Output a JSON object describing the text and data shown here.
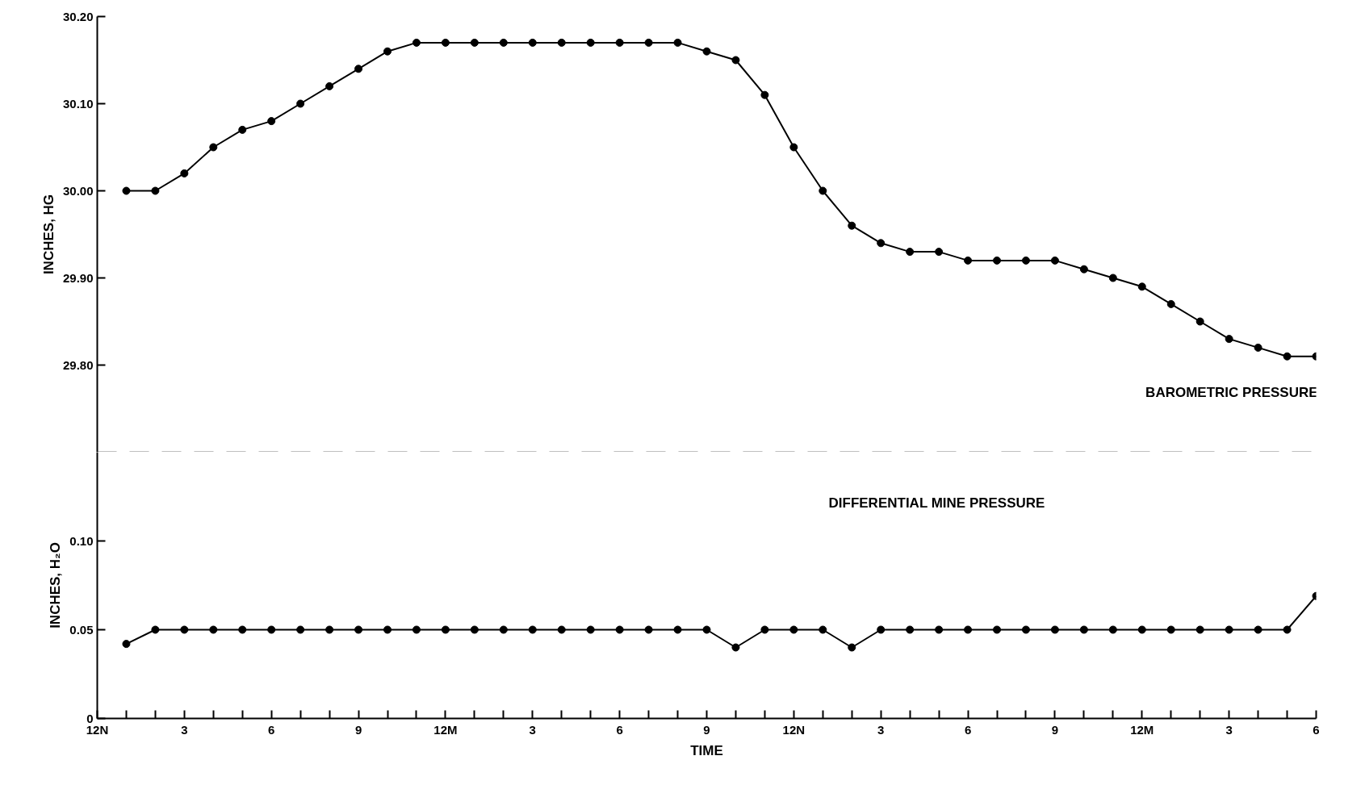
{
  "chart_data": [
    {
      "type": "line",
      "ylabel": "INCHES, HG",
      "categories": [
        null,
        null,
        null,
        null,
        null,
        null,
        null,
        null,
        null,
        null,
        null,
        null,
        null,
        null,
        null,
        null,
        null,
        null,
        null,
        null,
        null,
        null,
        null,
        null,
        null,
        null,
        null,
        null,
        null,
        null,
        null,
        null,
        null,
        null,
        null,
        null,
        null,
        null,
        null,
        null,
        null,
        null,
        null
      ],
      "series": [
        {
          "name": "BAROMETRIC PRESSURE",
          "color": "#000000",
          "values": [
            null,
            30.0,
            30.0,
            30.02,
            30.05,
            30.07,
            30.08,
            30.1,
            30.12,
            30.14,
            30.16,
            30.17,
            30.17,
            30.17,
            30.17,
            30.17,
            30.17,
            30.17,
            30.17,
            30.17,
            30.17,
            30.16,
            30.15,
            30.11,
            30.05,
            30.0,
            29.96,
            29.94,
            29.93,
            29.93,
            29.92,
            29.92,
            29.92,
            29.92,
            29.91,
            29.9,
            29.89,
            29.87,
            29.85,
            29.83,
            29.82,
            29.81,
            29.81
          ]
        }
      ],
      "ylim": [
        29.7,
        30.2
      ],
      "yticks": [
        {
          "value": 29.8,
          "label": "29.80"
        },
        {
          "value": 29.9,
          "label": "29.90"
        },
        {
          "value": 30.0,
          "label": "30.00"
        },
        {
          "value": 30.1,
          "label": "30.10"
        },
        {
          "value": 30.2,
          "label": "30.20"
        }
      ],
      "ref_lines": [
        {
          "axis": "y",
          "value": 29.7,
          "label": null,
          "color": "#000000",
          "line_style": "dashed"
        }
      ],
      "tick_labels": "y",
      "grid": false,
      "marker": "circle",
      "line_style": "solid"
    },
    {
      "type": "line",
      "xlabel": "TIME",
      "ylabel": "INCHES, H₂O",
      "categories": [
        "12N",
        null,
        null,
        "3",
        null,
        null,
        "6",
        null,
        null,
        "9",
        null,
        null,
        "12M",
        null,
        null,
        "3",
        null,
        null,
        "6",
        null,
        null,
        "9",
        null,
        null,
        "12N",
        null,
        null,
        "3",
        null,
        null,
        "6",
        null,
        null,
        "9",
        null,
        null,
        "12M",
        null,
        null,
        "3",
        null,
        null,
        "6"
      ],
      "series": [
        {
          "name": "DIFFERENTIAL MINE PRESSURE",
          "color": "#000000",
          "values": [
            null,
            0.042,
            0.05,
            0.05,
            0.05,
            0.05,
            0.05,
            0.05,
            0.05,
            0.05,
            0.05,
            0.05,
            0.05,
            0.05,
            0.05,
            0.05,
            0.05,
            0.05,
            0.05,
            0.05,
            0.05,
            0.05,
            0.04,
            0.05,
            0.05,
            0.05,
            0.04,
            0.05,
            0.05,
            0.05,
            0.05,
            0.05,
            0.05,
            0.05,
            0.05,
            0.05,
            0.05,
            0.05,
            0.05,
            0.05,
            0.05,
            0.05,
            0.069
          ]
        }
      ],
      "ylim": [
        0,
        0.15
      ],
      "yticks": [
        0,
        0.05,
        {
          "value": 0.1,
          "label": "0.10"
        }
      ],
      "grid": false,
      "marker": "circle",
      "line_style": "solid"
    }
  ]
}
